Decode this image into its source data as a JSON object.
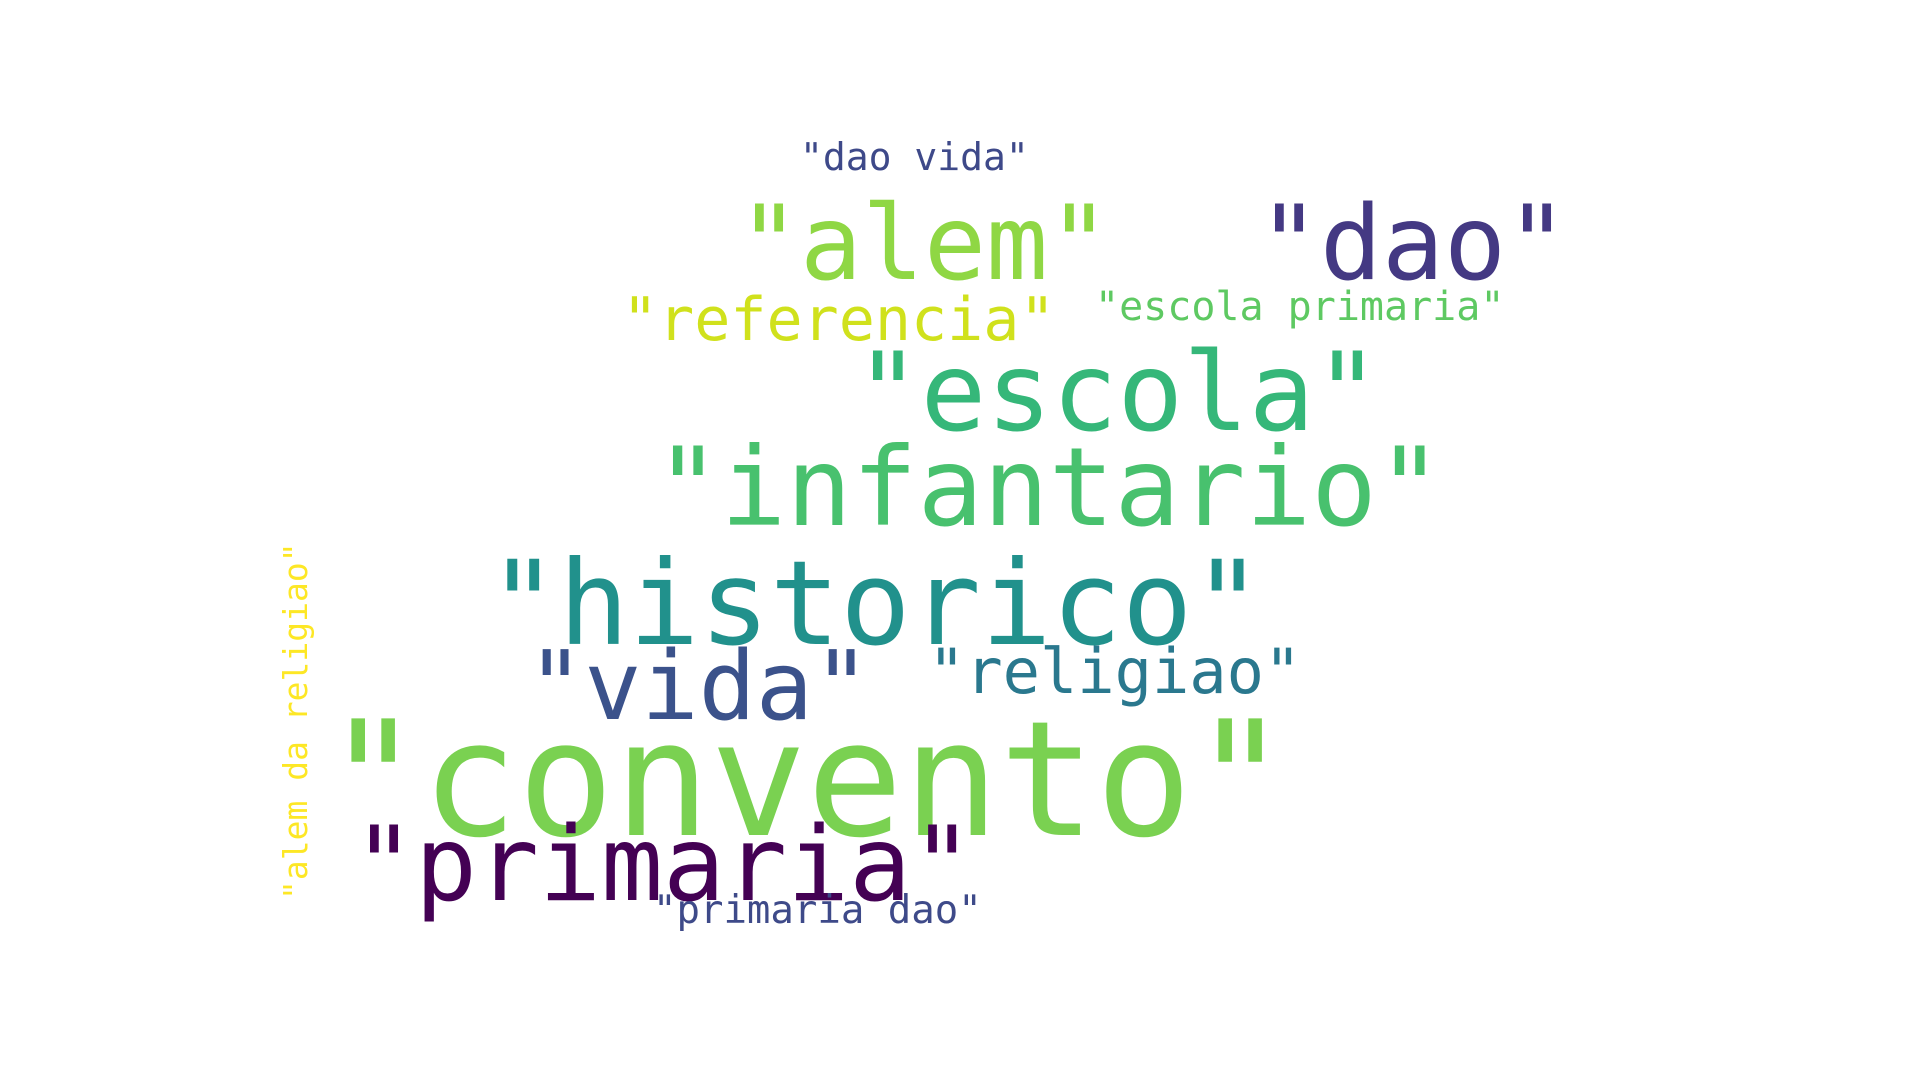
{
  "words": {
    "convento": "\"convento\"",
    "historico": "\"historico\"",
    "infantario": "\"infantario\"",
    "escola": "\"escola\"",
    "alem": "\"alem\"",
    "dao": "\"dao\"",
    "primaria": "\"primaria\"",
    "vida": "\"vida\"",
    "religiao": "\"religiao\"",
    "referencia": "\"referencia\"",
    "escola_primaria": "\"escola primaria\"",
    "dao_vida": "\"dao vida\"",
    "primaria_dao": "\"primaria dao\"",
    "alem_da_religiao": "\"alem da religiao\""
  },
  "colors": {
    "background": "#ffffff",
    "convento": "#7ad151",
    "historico": "#21918c",
    "infantario": "#48c16e",
    "escola": "#35b779",
    "alem": "#8fd744",
    "dao": "#443983",
    "primaria": "#440154",
    "vida": "#3b528b",
    "religiao": "#2a788e",
    "referencia": "#d0e11c",
    "escola_primaria": "#5ec962",
    "dao_vida": "#3e4989",
    "primaria_dao": "#3e4a89",
    "alem_da_religiao": "#fde725"
  }
}
